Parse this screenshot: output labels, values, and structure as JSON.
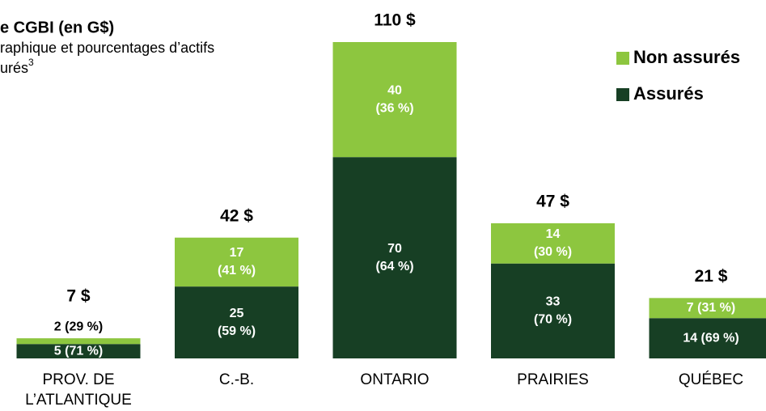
{
  "chart_data": {
    "type": "stacked_bar",
    "title": "e CGBI (en G$)",
    "subtitle": [
      "raphique et pourcentages d’actifs",
      "urés"
    ],
    "subtitle_note": "3",
    "categories": [
      [
        "PROV. DE",
        "L’ATLANTIQUE"
      ],
      [
        "C.-B."
      ],
      [
        "ONTARIO"
      ],
      [
        "PRAIRIES"
      ],
      [
        "QUÉBEC"
      ]
    ],
    "series": [
      {
        "name": "Assurés",
        "color": "#173f24",
        "values": [
          5,
          25,
          70,
          33,
          14
        ],
        "value_labels": [
          [
            "5 (71 %)"
          ],
          [
            "25",
            "(59 %)"
          ],
          [
            "70",
            "(64 %)"
          ],
          [
            "33",
            "(70 %)"
          ],
          [
            "14 (69 %)"
          ]
        ]
      },
      {
        "name": "Non assurés",
        "color": "#8dc63f",
        "values": [
          2,
          17,
          40,
          14,
          7
        ],
        "value_labels": [
          [
            "2 (29 %)"
          ],
          [
            "17",
            "(41 %)"
          ],
          [
            "40",
            "(36 %)"
          ],
          [
            "14",
            "(30 %)"
          ],
          [
            "7 (31 %)"
          ]
        ]
      }
    ],
    "totals": {
      "values": [
        7,
        42,
        110,
        47,
        21
      ],
      "value_labels": [
        "7 $",
        "42 $",
        "110 $",
        "47 $",
        "21 $"
      ]
    },
    "legend": "top-right"
  }
}
